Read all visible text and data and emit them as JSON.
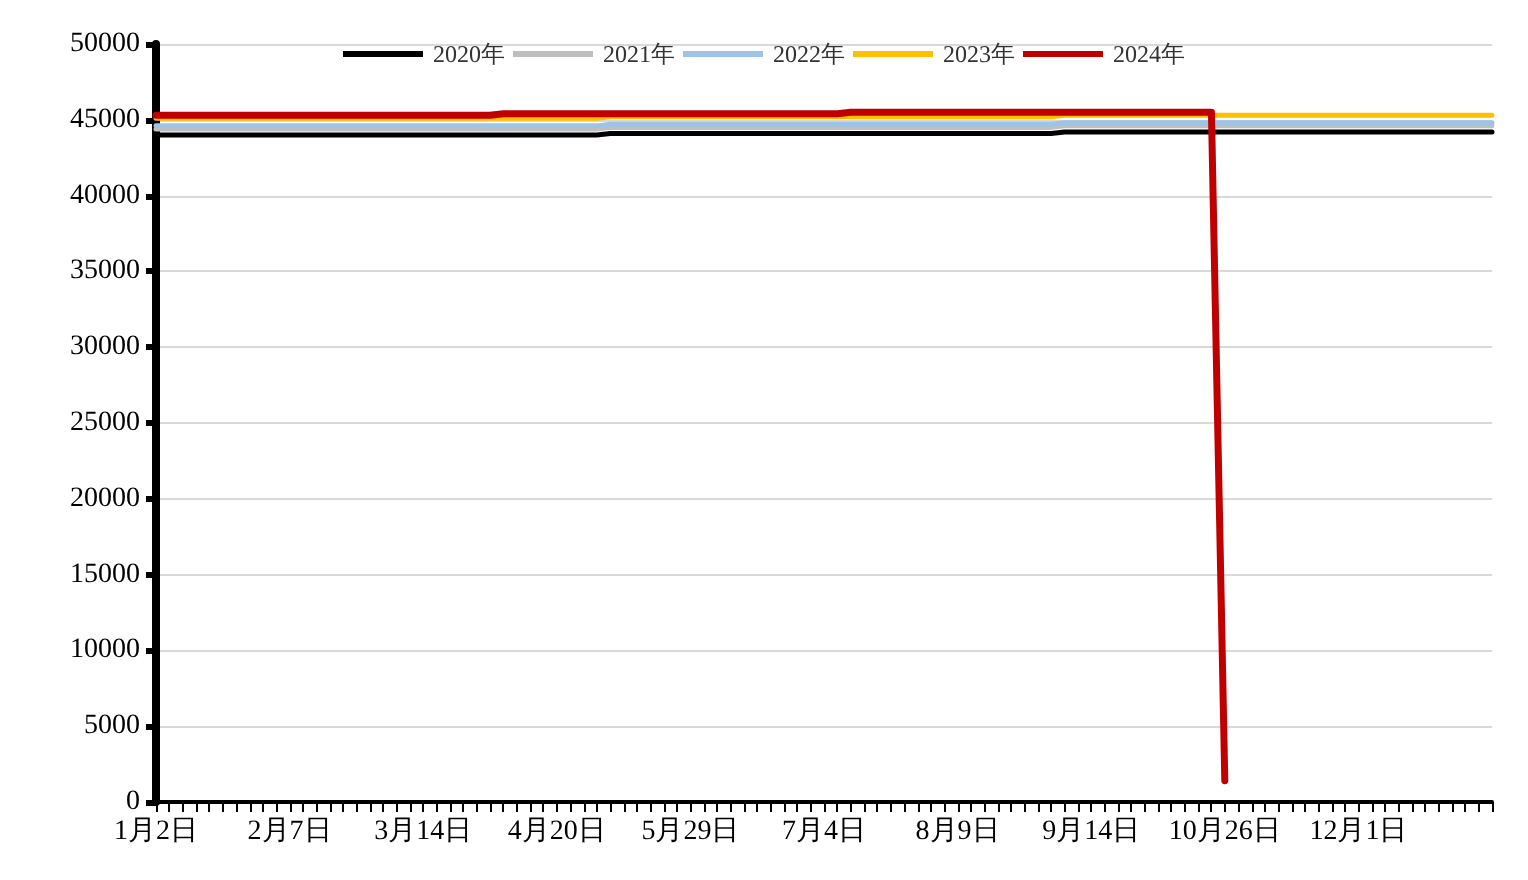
{
  "chart_data": {
    "type": "line",
    "categories": [
      "1月2日",
      null,
      null,
      null,
      null,
      null,
      null,
      null,
      null,
      null,
      "2月7日",
      null,
      null,
      null,
      null,
      null,
      null,
      null,
      null,
      null,
      "3月14日",
      null,
      null,
      null,
      null,
      null,
      null,
      null,
      null,
      null,
      "4月20日",
      null,
      null,
      null,
      null,
      null,
      null,
      null,
      null,
      null,
      "5月29日",
      null,
      null,
      null,
      null,
      null,
      null,
      null,
      null,
      null,
      "7月4日",
      null,
      null,
      null,
      null,
      null,
      null,
      null,
      null,
      null,
      "8月9日",
      null,
      null,
      null,
      null,
      null,
      null,
      null,
      null,
      null,
      "9月14日",
      null,
      null,
      null,
      null,
      null,
      null,
      null,
      null,
      null,
      "10月26日",
      null,
      null,
      null,
      null,
      null,
      null,
      null,
      null,
      null,
      "12月1日",
      null,
      null,
      null,
      null,
      null,
      null,
      null,
      null,
      null,
      null
    ],
    "series": [
      {
        "name": "2020年",
        "color": "#000000",
        "values": [
          44000,
          44000,
          44000,
          44000,
          44000,
          44000,
          44000,
          44000,
          44000,
          44000,
          44000,
          44000,
          44000,
          44000,
          44000,
          44000,
          44000,
          44000,
          44000,
          44000,
          44000,
          44000,
          44000,
          44000,
          44000,
          44000,
          44000,
          44000,
          44000,
          44000,
          44000,
          44000,
          44000,
          44000,
          44100,
          44100,
          44100,
          44100,
          44100,
          44100,
          44100,
          44100,
          44100,
          44100,
          44100,
          44100,
          44100,
          44100,
          44100,
          44100,
          44100,
          44100,
          44100,
          44100,
          44100,
          44100,
          44100,
          44100,
          44100,
          44100,
          44100,
          44100,
          44100,
          44100,
          44100,
          44100,
          44100,
          44100,
          44200,
          44200,
          44200,
          44200,
          44200,
          44200,
          44200,
          44200,
          44200,
          44200,
          44200,
          44200,
          44200,
          44200,
          44200,
          44200,
          44200,
          44200,
          44200,
          44200,
          44200,
          44200,
          44200,
          44200,
          44200,
          44200,
          44200,
          44200,
          44200,
          44200,
          44200,
          44200,
          44200
        ]
      },
      {
        "name": "2021年",
        "color": "#bfbfbf",
        "values": [
          44400,
          44400,
          44400,
          44400,
          44400,
          44400,
          44400,
          44400,
          44400,
          44400,
          44400,
          44400,
          44400,
          44400,
          44400,
          44400,
          44400,
          44400,
          44400,
          44400,
          44400,
          44400,
          44400,
          44400,
          44400,
          44400,
          44400,
          44400,
          44400,
          44400,
          44400,
          44400,
          44400,
          44400,
          44500,
          44500,
          44500,
          44500,
          44500,
          44500,
          44500,
          44500,
          44500,
          44500,
          44500,
          44500,
          44500,
          44500,
          44500,
          44500,
          44500,
          44500,
          44500,
          44500,
          44500,
          44500,
          44500,
          44500,
          44500,
          44500,
          44500,
          44500,
          44500,
          44500,
          44500,
          44500,
          44500,
          44500,
          44600,
          44600,
          44600,
          44600,
          44600,
          44600,
          44600,
          44600,
          44600,
          44600,
          44600,
          44600,
          44600,
          44600,
          44600,
          44600,
          44600,
          44600,
          44600,
          44600,
          44600,
          44600,
          44600,
          44600,
          44600,
          44600,
          44600,
          44600,
          44600,
          44600,
          44600,
          44600,
          44600
        ]
      },
      {
        "name": "2022年",
        "color": "#9dc3e6",
        "values": [
          44600,
          44600,
          44600,
          44600,
          44600,
          44600,
          44600,
          44600,
          44600,
          44600,
          44600,
          44600,
          44600,
          44600,
          44600,
          44600,
          44600,
          44600,
          44600,
          44600,
          44600,
          44600,
          44600,
          44600,
          44600,
          44600,
          44600,
          44600,
          44600,
          44600,
          44600,
          44600,
          44600,
          44600,
          44700,
          44700,
          44700,
          44700,
          44700,
          44700,
          44700,
          44700,
          44700,
          44700,
          44700,
          44700,
          44700,
          44700,
          44700,
          44700,
          44700,
          44700,
          44700,
          44700,
          44700,
          44700,
          44700,
          44700,
          44700,
          44700,
          44700,
          44700,
          44700,
          44700,
          44700,
          44700,
          44700,
          44700,
          44800,
          44800,
          44800,
          44800,
          44800,
          44800,
          44800,
          44800,
          44800,
          44800,
          44800,
          44800,
          44800,
          44800,
          44800,
          44800,
          44800,
          44800,
          44800,
          44800,
          44800,
          44800,
          44800,
          44800,
          44800,
          44800,
          44800,
          44800,
          44800,
          44800,
          44800,
          44800,
          44800
        ]
      },
      {
        "name": "2023年",
        "color": "#ffc000",
        "values": [
          45100,
          45100,
          45100,
          45100,
          45100,
          45100,
          45100,
          45100,
          45100,
          45100,
          45100,
          45100,
          45100,
          45100,
          45100,
          45100,
          45100,
          45100,
          45100,
          45100,
          45100,
          45100,
          45100,
          45100,
          45100,
          45100,
          45100,
          45100,
          45100,
          45100,
          45100,
          45100,
          45100,
          45100,
          45200,
          45200,
          45200,
          45200,
          45200,
          45200,
          45200,
          45200,
          45200,
          45200,
          45200,
          45200,
          45200,
          45200,
          45200,
          45200,
          45200,
          45200,
          45200,
          45200,
          45200,
          45200,
          45200,
          45200,
          45200,
          45200,
          45200,
          45200,
          45200,
          45200,
          45200,
          45200,
          45200,
          45200,
          45300,
          45300,
          45300,
          45300,
          45300,
          45300,
          45300,
          45300,
          45300,
          45300,
          45300,
          45300,
          45300,
          45300,
          45300,
          45300,
          45300,
          45300,
          45300,
          45300,
          45300,
          45300,
          45300,
          45300,
          45300,
          45300,
          45300,
          45300,
          45300,
          45300,
          45300,
          45300,
          45300
        ]
      },
      {
        "name": "2024年",
        "color": "#c00000",
        "values": [
          45300,
          45300,
          45300,
          45300,
          45300,
          45300,
          45300,
          45300,
          45300,
          45300,
          45300,
          45300,
          45300,
          45300,
          45300,
          45300,
          45300,
          45300,
          45300,
          45300,
          45300,
          45300,
          45300,
          45300,
          45300,
          45300,
          45400,
          45400,
          45400,
          45400,
          45400,
          45400,
          45400,
          45400,
          45400,
          45400,
          45400,
          45400,
          45400,
          45400,
          45400,
          45400,
          45400,
          45400,
          45400,
          45400,
          45400,
          45400,
          45400,
          45400,
          45400,
          45400,
          45500,
          45500,
          45500,
          45500,
          45500,
          45500,
          45500,
          45500,
          45500,
          45500,
          45500,
          45500,
          45500,
          45500,
          45500,
          45500,
          45500,
          45500,
          45500,
          45500,
          45500,
          45500,
          45500,
          45500,
          45500,
          45500,
          45500,
          45500,
          1400,
          null,
          null,
          null,
          null,
          null,
          null,
          null,
          null,
          null,
          null,
          null,
          null,
          null,
          null,
          null,
          null,
          null,
          null,
          null,
          null
        ]
      }
    ],
    "ylim": [
      0,
      50000
    ],
    "yticks": [
      0,
      5000,
      10000,
      15000,
      20000,
      25000,
      30000,
      35000,
      40000,
      45000,
      50000
    ],
    "grid": "y",
    "legend": "top",
    "marker": "none",
    "line_style": "solid"
  }
}
